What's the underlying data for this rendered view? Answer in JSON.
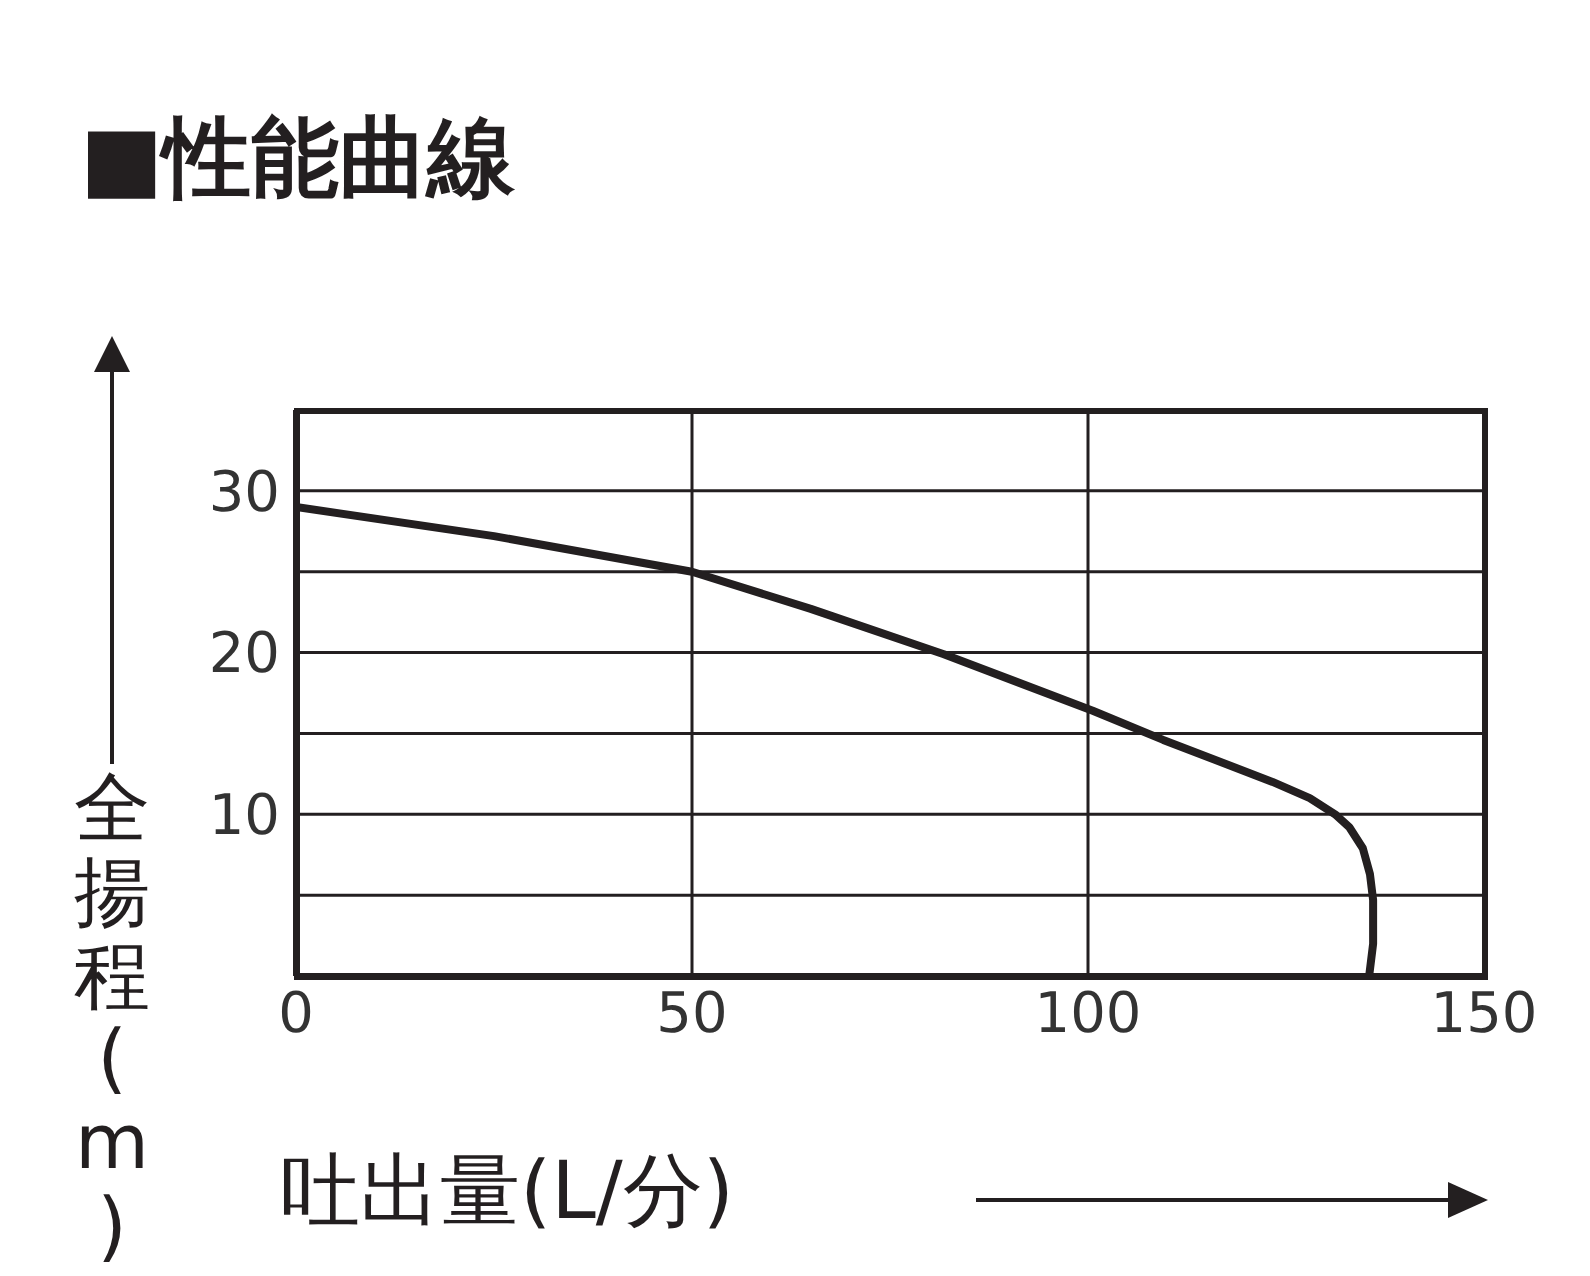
{
  "chart_data": {
    "type": "line",
    "title": "■性能曲線",
    "xlabel": "吐出量(L/分)",
    "ylabel": "全揚程(m)",
    "series": [
      {
        "color": "#231f20",
        "x": [
          0,
          25,
          50,
          65,
          81.8,
          100.6,
          109.5,
          123.3,
          128,
          131.2,
          133,
          134.7,
          135.6,
          136,
          136,
          135.5
        ],
        "values": [
          29.0,
          27.2,
          25.0,
          22.7,
          19.9,
          16.4,
          14.6,
          12.0,
          11.0,
          10.0,
          9.2,
          7.9,
          6.3,
          4.7,
          2.0,
          0
        ]
      }
    ],
    "xlim": [
      0,
      150
    ],
    "xticks": [
      0,
      50,
      100,
      150
    ],
    "ylim": [
      0,
      35
    ],
    "yticks": [
      {
        "value": 5,
        "label": null
      },
      10,
      {
        "value": 15,
        "label": null
      },
      20,
      {
        "value": 25,
        "label": null
      },
      30
    ],
    "grid": true,
    "line_style": "solid"
  }
}
